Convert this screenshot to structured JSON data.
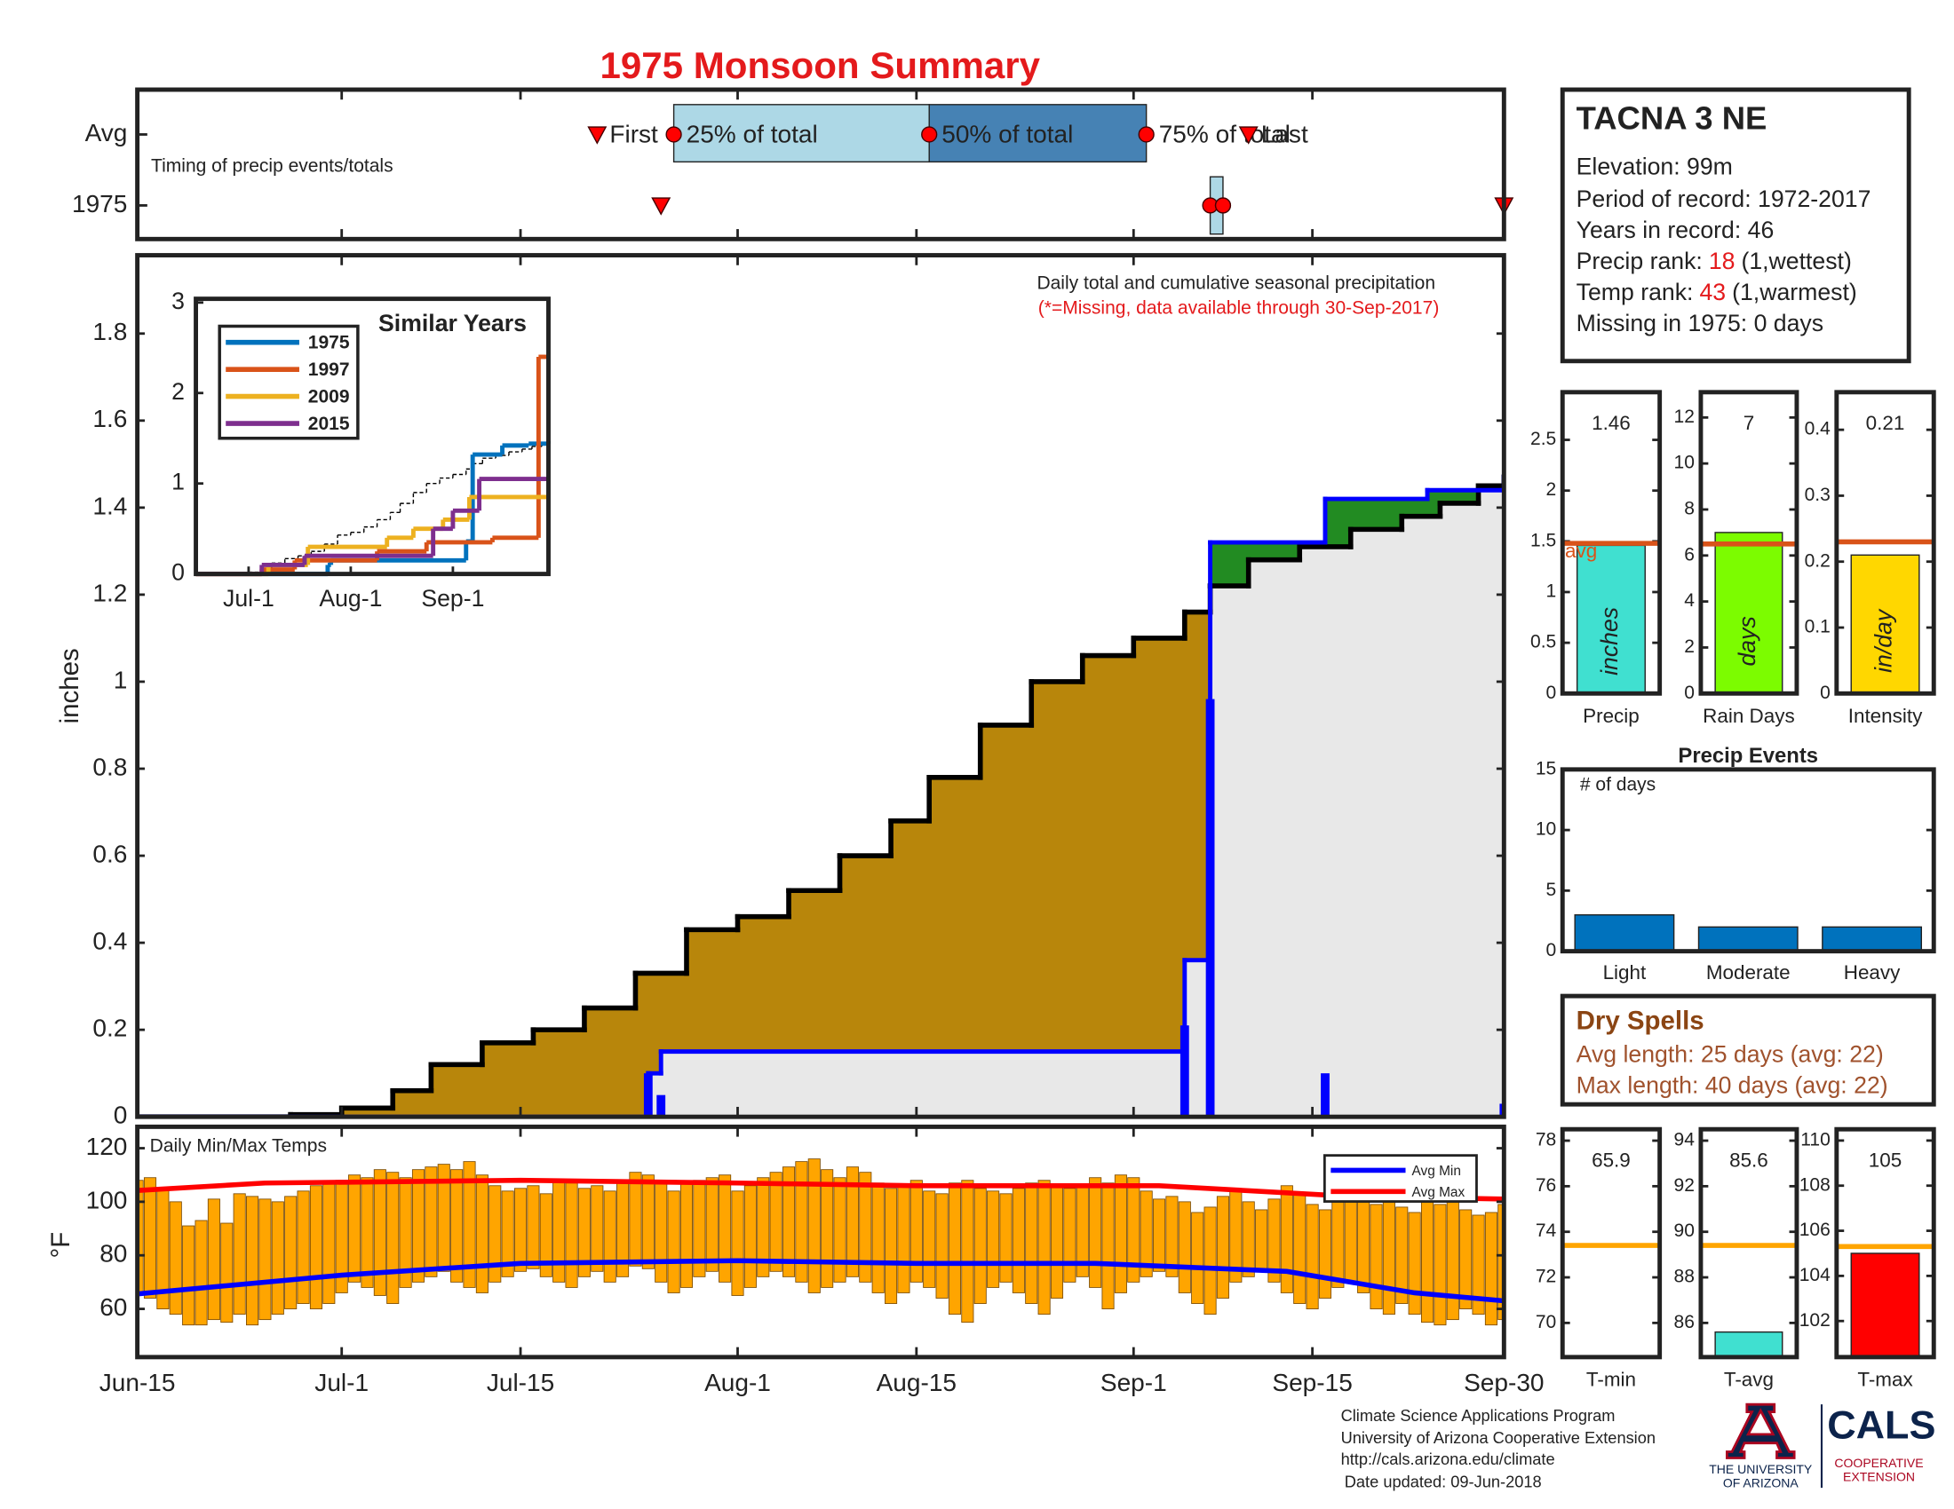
{
  "title": "1975 Monsoon Summary",
  "chart_data": [
    {
      "type": "timeline",
      "label": "Timing of precip events/totals",
      "rows": [
        "Avg",
        "1975"
      ],
      "xlim": [
        0,
        107
      ],
      "events": {
        "names": [
          "First",
          "25% of total",
          "50% of total",
          "75% of total",
          "Last"
        ],
        "avg": [
          36,
          42,
          62,
          79,
          87
        ],
        "year": [
          41,
          84,
          85,
          85,
          107
        ]
      },
      "marker_color": "#ff0000",
      "box_colors": [
        "#add8e6",
        "#4682b4"
      ]
    },
    {
      "type": "step-area",
      "annotation": "Daily total and cumulative seasonal precipitation",
      "note": "(*=Missing, data available through 30-Sep-2017)",
      "ylabel": "inches",
      "xlim": [
        0,
        107
      ],
      "ylim": [
        0,
        1.98
      ],
      "yticks": [
        0,
        0.2,
        0.4,
        0.6,
        0.8,
        1,
        1.2,
        1.4,
        1.6,
        1.8
      ],
      "average": {
        "color": "#b8860b",
        "x": [
          0,
          12,
          16,
          20,
          23,
          27,
          31,
          35,
          39,
          43,
          47,
          51,
          55,
          59,
          62,
          66,
          70,
          74,
          78,
          82,
          84,
          87,
          91,
          95,
          99,
          102,
          105,
          107
        ],
        "values": [
          0,
          0.005,
          0.02,
          0.06,
          0.12,
          0.17,
          0.2,
          0.25,
          0.33,
          0.43,
          0.46,
          0.52,
          0.6,
          0.68,
          0.78,
          0.9,
          1,
          1.06,
          1.1,
          1.16,
          1.22,
          1.28,
          1.31,
          1.35,
          1.38,
          1.41,
          1.45,
          1.47
        ]
      },
      "year": {
        "color": "#0000ff",
        "x": [
          0,
          40,
          41,
          82,
          84,
          93,
          101,
          107
        ],
        "values": [
          0,
          0.1,
          0.15,
          0.36,
          1.32,
          1.42,
          1.44,
          1.47
        ]
      },
      "daily": {
        "color": "#0000ff",
        "x": [
          40,
          41,
          82,
          84,
          93,
          107
        ],
        "values": [
          0.1,
          0.05,
          0.21,
          0.96,
          0.1,
          0.03
        ]
      },
      "above_color": "#228b22",
      "below_color": "#e8e8e8"
    },
    {
      "type": "line",
      "title": "Similar Years",
      "xlim": [
        0,
        107
      ],
      "xticks": [
        {
          "value": 16,
          "label": "Jul-1"
        },
        {
          "value": 47,
          "label": "Aug-1"
        },
        {
          "value": 78,
          "label": "Sep-1"
        }
      ],
      "ylim": [
        0,
        3
      ],
      "yticks": [
        0,
        1,
        2,
        3
      ],
      "series": [
        {
          "name": "1975",
          "color": "#0072bd",
          "x": [
            0,
            40,
            41,
            82,
            84,
            93,
            101,
            107
          ],
          "values": [
            0,
            0.1,
            0.15,
            0.36,
            1.32,
            1.42,
            1.44,
            1.47
          ]
        },
        {
          "name": "1997",
          "color": "#d95319",
          "x": [
            0,
            20,
            30,
            55,
            70,
            90,
            104,
            107
          ],
          "values": [
            0,
            0.05,
            0.15,
            0.25,
            0.35,
            0.4,
            2.4,
            2.4
          ]
        },
        {
          "name": "2009",
          "color": "#edb120",
          "x": [
            0,
            22,
            34,
            58,
            66,
            75,
            83,
            107
          ],
          "values": [
            0,
            0.1,
            0.3,
            0.4,
            0.5,
            0.6,
            0.85,
            0.85
          ]
        },
        {
          "name": "2015",
          "color": "#7e2f8e",
          "x": [
            0,
            20,
            33,
            72,
            78,
            86,
            107
          ],
          "values": [
            0,
            0.1,
            0.2,
            0.5,
            0.7,
            1.05,
            1.05
          ]
        }
      ]
    },
    {
      "type": "range-bar",
      "label": "Daily Min/Max Temps",
      "ylabel": "°F",
      "xlim": [
        0,
        107
      ],
      "xticks": [
        {
          "value": 0,
          "label": "Jun-15"
        },
        {
          "value": 16,
          "label": "Jul-1"
        },
        {
          "value": 30,
          "label": "Jul-15"
        },
        {
          "value": 47,
          "label": "Aug-1"
        },
        {
          "value": 61,
          "label": "Aug-15"
        },
        {
          "value": 78,
          "label": "Sep-1"
        },
        {
          "value": 92,
          "label": "Sep-15"
        },
        {
          "value": 107,
          "label": "Sep-30"
        }
      ],
      "ylim": [
        42,
        128
      ],
      "yticks": [
        60,
        80,
        100,
        120
      ],
      "color": "#ffa500",
      "x": [
        0,
        1,
        2,
        3,
        4,
        5,
        6,
        7,
        8,
        9,
        10,
        11,
        12,
        13,
        14,
        15,
        16,
        17,
        18,
        19,
        20,
        21,
        22,
        23,
        24,
        25,
        26,
        27,
        28,
        29,
        30,
        31,
        32,
        33,
        34,
        35,
        36,
        37,
        38,
        39,
        40,
        41,
        42,
        43,
        44,
        45,
        46,
        47,
        48,
        49,
        50,
        51,
        52,
        53,
        54,
        55,
        56,
        57,
        58,
        59,
        60,
        61,
        62,
        63,
        64,
        65,
        66,
        67,
        68,
        69,
        70,
        71,
        72,
        73,
        74,
        75,
        76,
        77,
        78,
        79,
        80,
        81,
        82,
        83,
        84,
        85,
        86,
        87,
        88,
        89,
        90,
        91,
        92,
        93,
        94,
        95,
        96,
        97,
        98,
        99,
        100,
        101,
        102,
        103,
        104,
        105,
        106,
        107
      ],
      "max": [
        108,
        109,
        105,
        100,
        91,
        93,
        101,
        92,
        103,
        102,
        101,
        100,
        102,
        104,
        106,
        107,
        108,
        110,
        109,
        112,
        111,
        109,
        112,
        113,
        114,
        112,
        115,
        110,
        106,
        104,
        105,
        106,
        103,
        108,
        107,
        105,
        106,
        104,
        108,
        111,
        110,
        108,
        104,
        107,
        108,
        109,
        110,
        104,
        106,
        109,
        111,
        113,
        115,
        116,
        112,
        109,
        113,
        111,
        107,
        105,
        106,
        108,
        104,
        103,
        107,
        108,
        105,
        104,
        103,
        105,
        107,
        108,
        106,
        105,
        106,
        109,
        107,
        110,
        109,
        104,
        101,
        102,
        100,
        96,
        98,
        102,
        104,
        100,
        97,
        101,
        106,
        103,
        99,
        97,
        100,
        102,
        101,
        99,
        100,
        98,
        96,
        101,
        99,
        100,
        97,
        95,
        96,
        99
      ],
      "min": [
        66,
        64,
        60,
        58,
        54,
        54,
        56,
        55,
        58,
        54,
        56,
        58,
        60,
        62,
        60,
        62,
        66,
        70,
        68,
        65,
        62,
        68,
        70,
        72,
        74,
        70,
        68,
        66,
        70,
        72,
        74,
        75,
        72,
        70,
        68,
        72,
        74,
        70,
        72,
        76,
        75,
        70,
        66,
        68,
        72,
        74,
        70,
        65,
        68,
        72,
        74,
        72,
        70,
        66,
        68,
        70,
        72,
        70,
        66,
        62,
        66,
        70,
        68,
        64,
        58,
        55,
        62,
        68,
        70,
        66,
        62,
        58,
        64,
        70,
        72,
        68,
        60,
        66,
        70,
        72,
        74,
        72,
        66,
        62,
        58,
        64,
        70,
        72,
        74,
        70,
        66,
        62,
        60,
        64,
        68,
        70,
        66,
        60,
        58,
        62,
        58,
        55,
        54,
        56,
        60,
        58,
        54,
        56
      ],
      "series": [
        {
          "name": "Avg Min",
          "color": "#0000ff",
          "x": [
            0,
            16,
            30,
            47,
            61,
            75,
            90,
            100,
            107
          ],
          "values": [
            65.6,
            72.6,
            77,
            78,
            77,
            77,
            74,
            66,
            63
          ]
        },
        {
          "name": "Avg Max",
          "color": "#ff0000",
          "x": [
            0,
            10,
            30,
            47,
            61,
            80,
            95,
            107
          ],
          "values": [
            104.2,
            107,
            108,
            107,
            106,
            106,
            102,
            101
          ]
        }
      ]
    },
    {
      "type": "bar",
      "category": "Precip",
      "value": 1.46,
      "inner_label": "inches",
      "avg": 1.48,
      "avg_label": "avg",
      "ylim": [
        0,
        2.97
      ],
      "yticks": [
        0,
        0.5,
        1,
        1.5,
        2,
        2.5
      ],
      "color": "#40e0d0",
      "avg_color": "#d95319"
    },
    {
      "type": "bar",
      "category": "Rain Days",
      "value": 7,
      "inner_label": "days",
      "avg": 6.5,
      "ylim": [
        0,
        13.1
      ],
      "yticks": [
        0,
        2,
        4,
        6,
        8,
        10,
        12
      ],
      "color": "#7cfc00",
      "avg_color": "#d95319"
    },
    {
      "type": "bar",
      "category": "Intensity",
      "value": 0.21,
      "inner_label": "in/day",
      "avg": 0.23,
      "ylim": [
        0,
        0.457
      ],
      "yticks": [
        0,
        0.1,
        0.2,
        0.3,
        0.4
      ],
      "color": "#ffd700",
      "avg_color": "#d95319"
    },
    {
      "type": "bar",
      "title": "Precip Events",
      "label": "# of days",
      "categories": [
        "Light",
        "Moderate",
        "Heavy"
      ],
      "values": [
        3,
        2,
        2
      ],
      "ylim": [
        0,
        15
      ],
      "yticks": [
        0,
        5,
        10,
        15
      ],
      "color": "#0072bd"
    },
    {
      "type": "bar",
      "category": "T-min",
      "value": 65.9,
      "avg": 73.4,
      "ylim": [
        68.5,
        78.5
      ],
      "yticks": [
        70,
        72,
        74,
        76,
        78
      ],
      "color": "#40e0d0",
      "avg_color": "#ffa500"
    },
    {
      "type": "bar",
      "category": "T-avg",
      "value": 85.6,
      "avg": 89.4,
      "ylim": [
        84.5,
        94.5
      ],
      "yticks": [
        86,
        88,
        90,
        92,
        94
      ],
      "color": "#40e0d0",
      "avg_color": "#ffa500"
    },
    {
      "type": "bar",
      "category": "T-max",
      "value": 105,
      "avg": 105.3,
      "ylim": [
        100.4,
        110.5
      ],
      "yticks": [
        102,
        104,
        106,
        108,
        110
      ],
      "color": "#ff0000",
      "avg_color": "#ffa500"
    }
  ],
  "station": {
    "name": "TACNA 3 NE",
    "elevation": "Elevation: 99m",
    "period": "Period of record: 1972-2017",
    "years": "Years in record: 46",
    "precip_rank": {
      "label": "Precip rank:",
      "value": 18,
      "note": "(1,wettest)"
    },
    "temp_rank": {
      "label": "Temp rank:",
      "value": 43,
      "note": "(1,warmest)"
    },
    "missing": "Missing in 1975: 0 days"
  },
  "dry_spells": {
    "title": "Dry Spells",
    "avg": "Avg length: 25 days (avg: 22)",
    "max": "Max length: 40 days (avg: 22)"
  },
  "footer": [
    "Climate Science Applications Program",
    "University of Arizona Cooperative Extension",
    "http://cals.arizona.edu/climate",
    "Date updated: 09-Jun-2018"
  ],
  "logos": {
    "ua": [
      "THE UNIVERSITY",
      "OF ARIZONA"
    ],
    "cals": "CALS",
    "extension": [
      "COOPERATIVE",
      "EXTENSION"
    ]
  }
}
